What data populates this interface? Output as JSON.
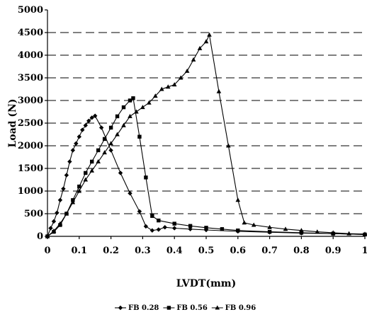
{
  "chart_data": {
    "type": "line",
    "title": "",
    "xlabel": "LVDT(mm)",
    "ylabel": "Load (N)",
    "xlim": [
      0,
      1
    ],
    "ylim": [
      0,
      5000
    ],
    "x_ticks": [
      "0",
      "0.1",
      "0.2",
      "0.3",
      "0.4",
      "0.5",
      "0.6",
      "0.7",
      "0.8",
      "0.9",
      "1"
    ],
    "y_ticks": [
      "0",
      "500",
      "1000",
      "1500",
      "2000",
      "2500",
      "3000",
      "3500",
      "4000",
      "4500",
      "5000"
    ],
    "grid": "horizontal dashed",
    "legend_position": "bottom",
    "series": [
      {
        "name": "FB 0.28",
        "marker": "diamond",
        "points": [
          [
            0,
            0
          ],
          [
            0.01,
            180
          ],
          [
            0.02,
            330
          ],
          [
            0.03,
            520
          ],
          [
            0.04,
            800
          ],
          [
            0.05,
            1050
          ],
          [
            0.06,
            1350
          ],
          [
            0.07,
            1650
          ],
          [
            0.08,
            1900
          ],
          [
            0.09,
            2050
          ],
          [
            0.1,
            2200
          ],
          [
            0.11,
            2350
          ],
          [
            0.12,
            2450
          ],
          [
            0.13,
            2550
          ],
          [
            0.14,
            2620
          ],
          [
            0.15,
            2660
          ],
          [
            0.17,
            2400
          ],
          [
            0.2,
            1900
          ],
          [
            0.23,
            1400
          ],
          [
            0.26,
            950
          ],
          [
            0.29,
            550
          ],
          [
            0.31,
            220
          ],
          [
            0.33,
            130
          ],
          [
            0.35,
            150
          ],
          [
            0.37,
            200
          ],
          [
            0.4,
            180
          ],
          [
            0.45,
            160
          ],
          [
            0.5,
            140
          ],
          [
            0.6,
            110
          ],
          [
            0.7,
            90
          ],
          [
            0.8,
            70
          ],
          [
            0.9,
            60
          ],
          [
            1.0,
            40
          ]
        ]
      },
      {
        "name": "FB 0.56",
        "marker": "square",
        "points": [
          [
            0,
            0
          ],
          [
            0.02,
            100
          ],
          [
            0.04,
            250
          ],
          [
            0.06,
            500
          ],
          [
            0.08,
            800
          ],
          [
            0.1,
            1100
          ],
          [
            0.12,
            1400
          ],
          [
            0.14,
            1650
          ],
          [
            0.16,
            1900
          ],
          [
            0.18,
            2150
          ],
          [
            0.2,
            2400
          ],
          [
            0.22,
            2650
          ],
          [
            0.24,
            2850
          ],
          [
            0.26,
            3000
          ],
          [
            0.27,
            3050
          ],
          [
            0.29,
            2200
          ],
          [
            0.31,
            1300
          ],
          [
            0.33,
            450
          ],
          [
            0.35,
            350
          ],
          [
            0.4,
            280
          ],
          [
            0.45,
            230
          ],
          [
            0.5,
            190
          ],
          [
            0.55,
            160
          ],
          [
            0.6,
            130
          ],
          [
            0.7,
            100
          ],
          [
            0.8,
            80
          ],
          [
            0.9,
            60
          ],
          [
            1.0,
            40
          ]
        ]
      },
      {
        "name": "FB 0.96",
        "marker": "triangle",
        "points": [
          [
            0,
            0
          ],
          [
            0.02,
            120
          ],
          [
            0.04,
            280
          ],
          [
            0.06,
            500
          ],
          [
            0.08,
            750
          ],
          [
            0.1,
            1000
          ],
          [
            0.12,
            1250
          ],
          [
            0.14,
            1450
          ],
          [
            0.16,
            1650
          ],
          [
            0.18,
            1850
          ],
          [
            0.2,
            2050
          ],
          [
            0.22,
            2250
          ],
          [
            0.24,
            2450
          ],
          [
            0.26,
            2650
          ],
          [
            0.28,
            2750
          ],
          [
            0.3,
            2850
          ],
          [
            0.32,
            2950
          ],
          [
            0.34,
            3100
          ],
          [
            0.36,
            3250
          ],
          [
            0.38,
            3300
          ],
          [
            0.4,
            3350
          ],
          [
            0.42,
            3500
          ],
          [
            0.44,
            3650
          ],
          [
            0.46,
            3900
          ],
          [
            0.48,
            4150
          ],
          [
            0.5,
            4300
          ],
          [
            0.51,
            4450
          ],
          [
            0.54,
            3200
          ],
          [
            0.57,
            2000
          ],
          [
            0.6,
            800
          ],
          [
            0.62,
            300
          ],
          [
            0.65,
            250
          ],
          [
            0.7,
            200
          ],
          [
            0.75,
            160
          ],
          [
            0.8,
            130
          ],
          [
            0.85,
            100
          ],
          [
            0.9,
            80
          ],
          [
            0.95,
            60
          ],
          [
            1.0,
            50
          ]
        ]
      }
    ]
  }
}
